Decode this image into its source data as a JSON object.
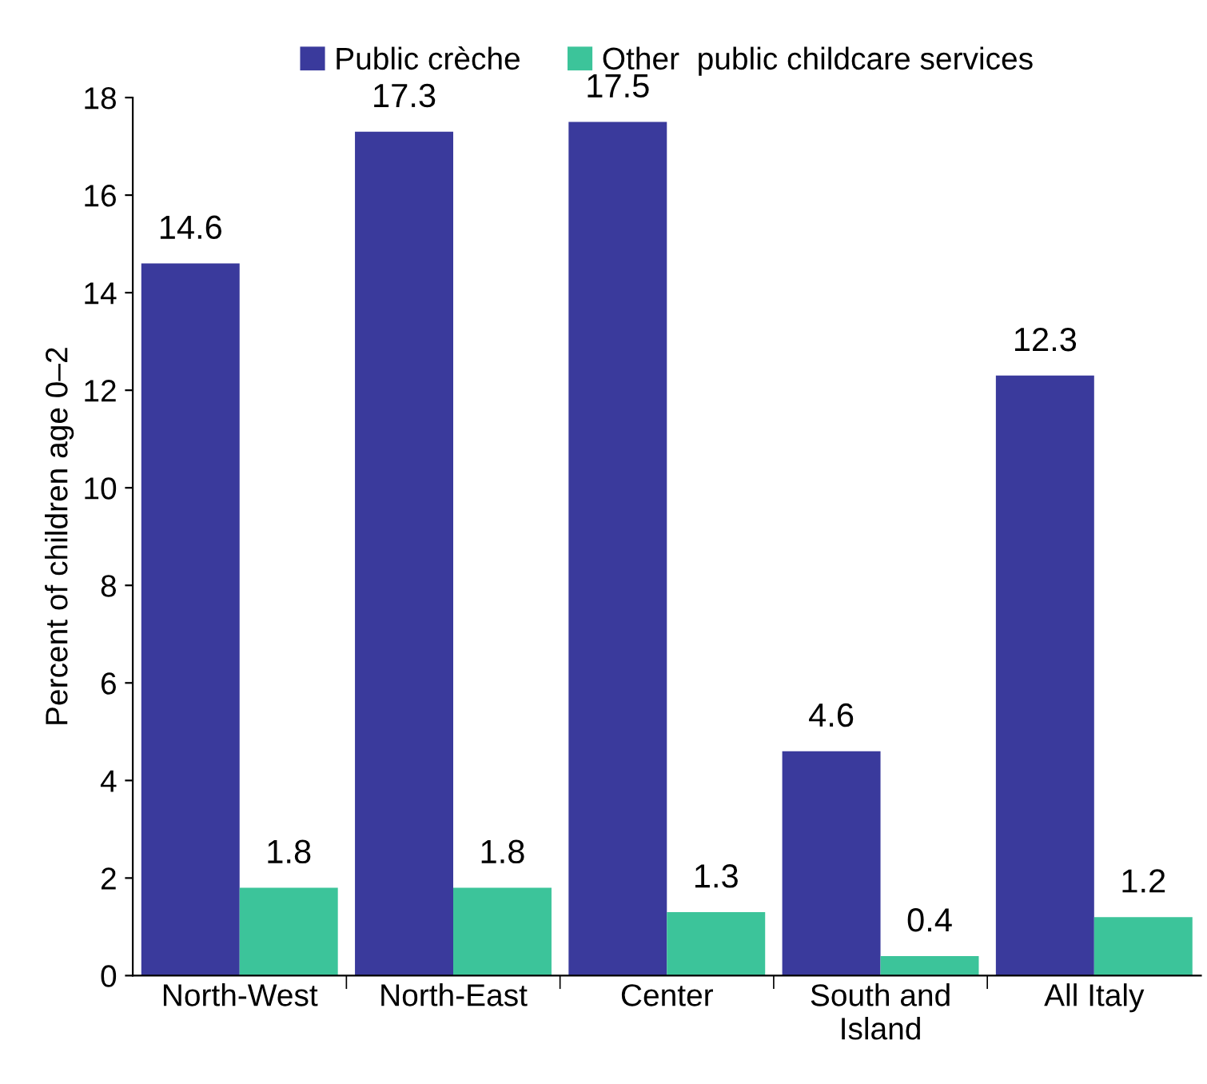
{
  "chart_data": {
    "type": "bar",
    "ylabel": "Percent of children age 0–2",
    "categories": [
      "North-West",
      "North-East",
      "Center",
      "South and\nIsland",
      "All Italy"
    ],
    "series": [
      {
        "name": "Public crèche",
        "color": "#3a3a9c",
        "values": [
          14.6,
          17.3,
          17.5,
          4.6,
          12.3
        ]
      },
      {
        "name": "Other  public childcare services",
        "color": "#3cc49a",
        "values": [
          1.8,
          1.8,
          1.3,
          0.4,
          1.2
        ]
      }
    ],
    "ylim": [
      0,
      18
    ],
    "yticks": [
      0,
      2,
      4,
      6,
      8,
      10,
      12,
      14,
      16,
      18
    ],
    "data_labels": true,
    "legend": "top",
    "grid": false
  }
}
